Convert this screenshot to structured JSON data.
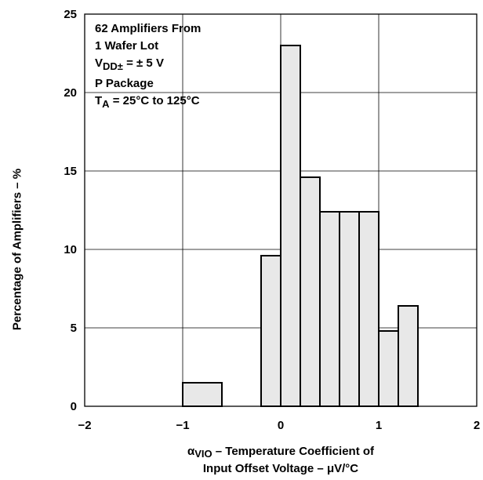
{
  "chart_data": {
    "type": "bar",
    "bin_edges": [
      -1.0,
      -0.6,
      -0.2,
      0.0,
      0.2,
      0.4,
      0.6,
      0.8,
      1.0,
      1.2,
      1.4
    ],
    "values": [
      1.5,
      0,
      9.6,
      23.0,
      14.6,
      12.4,
      12.4,
      12.4,
      4.8,
      6.4
    ],
    "xlim": [
      -2,
      2
    ],
    "ylim": [
      0,
      25
    ],
    "xticks": [
      "−2",
      "−1",
      "0",
      "1",
      "2"
    ],
    "xtick_values": [
      -2,
      -1,
      0,
      1,
      2
    ],
    "yticks": [
      "0",
      "5",
      "10",
      "15",
      "20",
      "25"
    ],
    "ytick_values": [
      0,
      5,
      10,
      15,
      20,
      25
    ],
    "grid": true,
    "ylabel": "Percentage of Amplifiers – %",
    "xlabel": {
      "symbol": "α",
      "symbol_sub": "VIO",
      "line1_rest": " – Temperature Coefficient of",
      "line2": "Input Offset Voltage – μV/°C"
    },
    "annotations": {
      "line1": "62 Amplifiers From",
      "line2": "1 Wafer Lot",
      "vdd_v": "V",
      "vdd_sub": "DD±",
      "vdd_rest": " = ± 5 V",
      "line4": "P Package",
      "ta_t": "T",
      "ta_sub": "A",
      "ta_rest": " = 25°C to 125°C"
    },
    "colors": {
      "bar_fill": "#e8e8e8",
      "line": "#000000"
    }
  }
}
